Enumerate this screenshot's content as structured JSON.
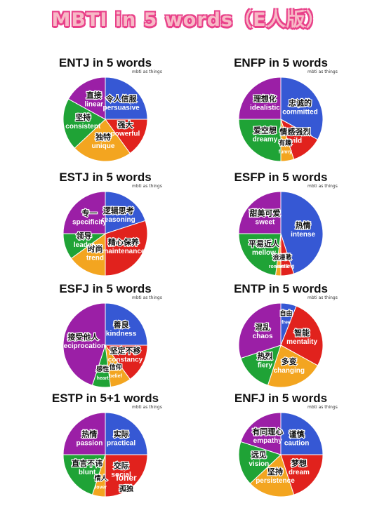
{
  "title": "MBTI in 5 words（E人版）",
  "watermark": "mbti as things",
  "colors": {
    "purple": "#9b1fa6",
    "blue": "#3658d4",
    "red": "#e1221d",
    "orange": "#f3a520",
    "green": "#1fa336",
    "title_pink": "#f7b9c6",
    "title_outline": "#e9418a"
  },
  "cards": [
    {
      "id": "entj",
      "title": "ENTJ in 5 words",
      "segments": [
        {
          "color": "#3658d4",
          "value": 25,
          "cn": "令人信服",
          "en": "persuasive"
        },
        {
          "color": "#e1221d",
          "value": 15,
          "cn": "强大",
          "en": "powerful"
        },
        {
          "color": "#f3a520",
          "value": 23,
          "cn": "独特",
          "en": "unique"
        },
        {
          "color": "#1fa336",
          "value": 20,
          "cn": "坚持",
          "en": "consistent"
        },
        {
          "color": "#9b1fa6",
          "value": 17,
          "cn": "直接",
          "en": "linear"
        }
      ]
    },
    {
      "id": "enfp",
      "title": "ENFP in 5 words",
      "segments": [
        {
          "color": "#3658d4",
          "value": 33,
          "cn": "忠诚的",
          "en": "committed"
        },
        {
          "color": "#e1221d",
          "value": 12,
          "cn": "情感强烈",
          "en": "wild"
        },
        {
          "color": "#f3a520",
          "value": 5,
          "cn": "有趣",
          "en": "funny"
        },
        {
          "color": "#1fa336",
          "value": 25,
          "cn": "爱空想",
          "en": "dreamy"
        },
        {
          "color": "#9b1fa6",
          "value": 25,
          "cn": "理想化",
          "en": "idealistic"
        }
      ]
    },
    {
      "id": "estj",
      "title": "ESTJ in 5 words",
      "segments": [
        {
          "color": "#3658d4",
          "value": 20,
          "cn": "逻辑思考",
          "en": "reasoning"
        },
        {
          "color": "#e1221d",
          "value": 30,
          "cn": "精心保养",
          "en": "maintenance"
        },
        {
          "color": "#f3a520",
          "value": 15,
          "cn": "时尚",
          "en": "trend"
        },
        {
          "color": "#1fa336",
          "value": 10,
          "cn": "领导",
          "en": "leader"
        },
        {
          "color": "#9b1fa6",
          "value": 25,
          "cn": "专一",
          "en": "specificity"
        }
      ]
    },
    {
      "id": "esfp",
      "title": "ESFP in 5 words",
      "segments": [
        {
          "color": "#3658d4",
          "value": 45,
          "cn": "热情",
          "en": "intense"
        },
        {
          "color": "#e1221d",
          "value": 5,
          "cn": "刺激",
          "en": "exciting"
        },
        {
          "color": "#f3a520",
          "value": 2,
          "cn": "浪漫",
          "en": "romantic"
        },
        {
          "color": "#1fa336",
          "value": 23,
          "cn": "平易近人",
          "en": "mellow"
        },
        {
          "color": "#9b1fa6",
          "value": 25,
          "cn": "甜美可爱",
          "en": "sweet"
        }
      ]
    },
    {
      "id": "esfj",
      "title": "ESFJ in 5 words",
      "segments": [
        {
          "color": "#3658d4",
          "value": 25,
          "cn": "善良",
          "en": "kindness"
        },
        {
          "color": "#e1221d",
          "value": 15,
          "cn": "坚定不移",
          "en": "constancy"
        },
        {
          "color": "#f3a520",
          "value": 8,
          "cn": "信仰",
          "en": "belief"
        },
        {
          "color": "#1fa336",
          "value": 7,
          "cn": "感性",
          "en": "heart"
        },
        {
          "color": "#9b1fa6",
          "value": 45,
          "cn": "接受他人",
          "en": "reciprocation"
        }
      ]
    },
    {
      "id": "entp",
      "title": "ENTP in 5 words",
      "segments": [
        {
          "color": "#3658d4",
          "value": 6,
          "cn": "自由",
          "en": "free"
        },
        {
          "color": "#e1221d",
          "value": 27,
          "cn": "智能",
          "en": "mentality"
        },
        {
          "color": "#f3a520",
          "value": 22,
          "cn": "多变",
          "en": "changing"
        },
        {
          "color": "#1fa336",
          "value": 15,
          "cn": "热烈",
          "en": "fiery"
        },
        {
          "color": "#9b1fa6",
          "value": 30,
          "cn": "混乱",
          "en": "chaos"
        }
      ]
    },
    {
      "id": "estp",
      "title": "ESTP in 5+1 words",
      "segments": [
        {
          "color": "#3658d4",
          "value": 25,
          "cn": "实际",
          "en": "practical"
        },
        {
          "color": "#e1221d",
          "value": 25,
          "cn": "交际",
          "en": "social"
        },
        {
          "color": "#f3a520",
          "value": 5,
          "cn": "情人",
          "en": "lover"
        },
        {
          "color": "#1fa336",
          "value": 20,
          "cn": "直言不讳",
          "en": "blunt"
        },
        {
          "color": "#9b1fa6",
          "value": 25,
          "cn": "热情",
          "en": "passion"
        }
      ],
      "extra": {
        "cn": "孤独",
        "en": "loner"
      }
    },
    {
      "id": "enfj",
      "title": "ENFJ in 5 words",
      "segments": [
        {
          "color": "#3658d4",
          "value": 25,
          "cn": "谨慎",
          "en": "caution"
        },
        {
          "color": "#e1221d",
          "value": 20,
          "cn": "梦想",
          "en": "dream"
        },
        {
          "color": "#f3a520",
          "value": 18,
          "cn": "坚持",
          "en": "persistence"
        },
        {
          "color": "#1fa336",
          "value": 17,
          "cn": "远见",
          "en": "vision"
        },
        {
          "color": "#9b1fa6",
          "value": 20,
          "cn": "有同理心",
          "en": "empathy"
        }
      ]
    }
  ]
}
